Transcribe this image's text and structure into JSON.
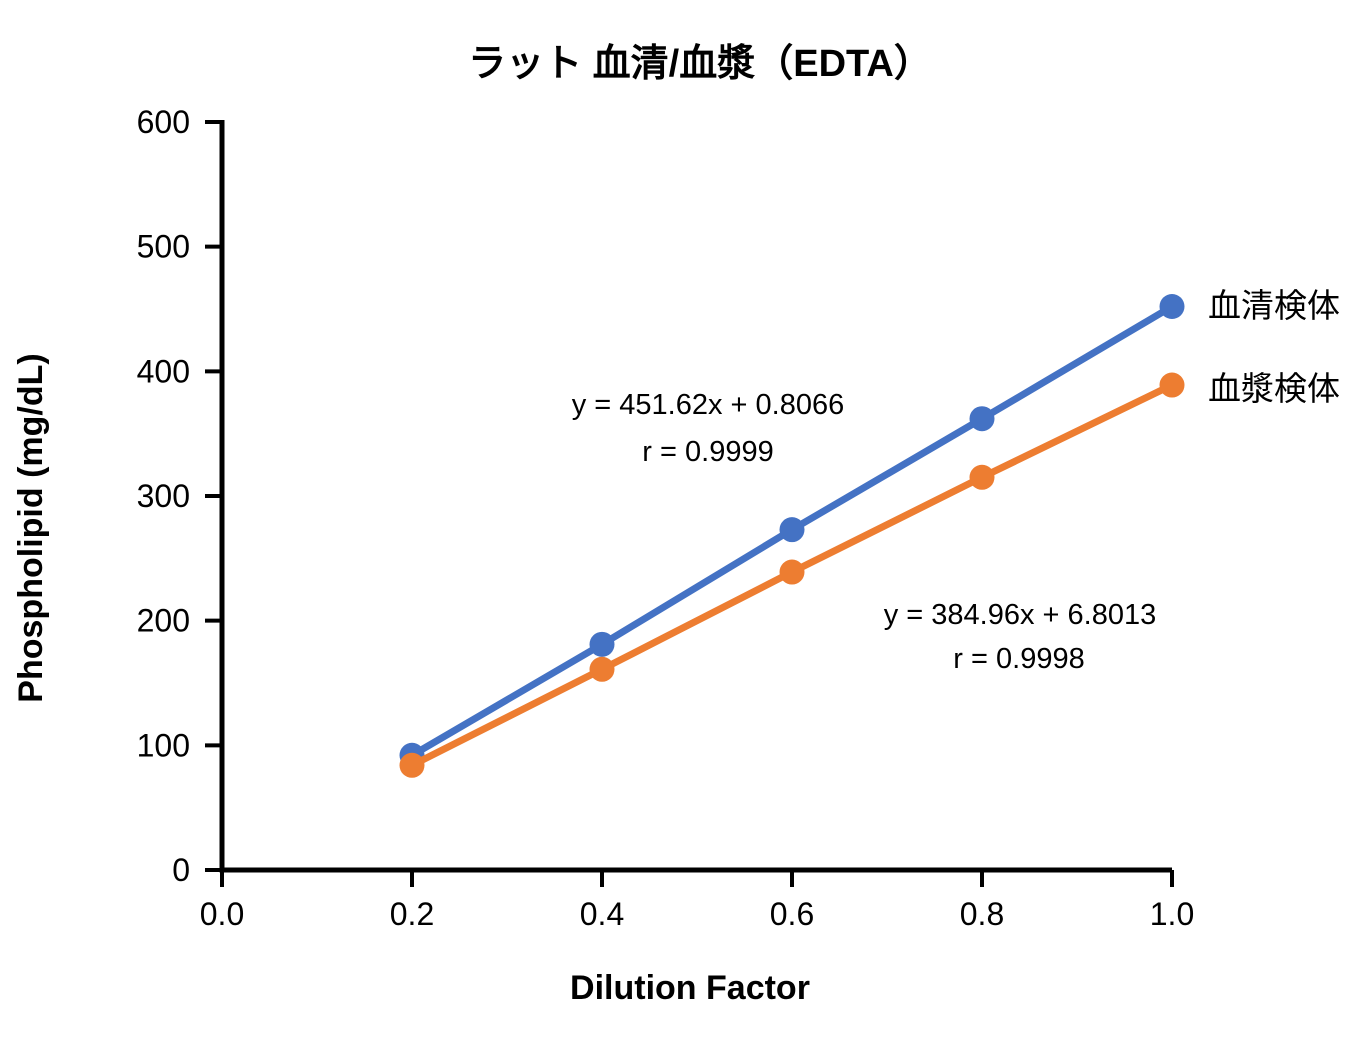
{
  "chart_data": {
    "type": "line",
    "title": "ラット 血清/血漿（EDTA）",
    "xlabel": "Dilution Factor",
    "ylabel": "Phospholipid (mg/dL)",
    "x": [
      0.2,
      0.4,
      0.6,
      0.8,
      1.0
    ],
    "xlim": [
      0.0,
      1.0
    ],
    "ylim": [
      0,
      600
    ],
    "x_ticks": [
      "0.0",
      "0.2",
      "0.4",
      "0.6",
      "0.8",
      "1.0"
    ],
    "x_tick_values": [
      0.0,
      0.2,
      0.4,
      0.6,
      0.8,
      1.0
    ],
    "y_ticks": [
      "0",
      "100",
      "200",
      "300",
      "400",
      "500",
      "600"
    ],
    "y_tick_values": [
      0,
      100,
      200,
      300,
      400,
      500,
      600
    ],
    "grid": false,
    "axis_color": "#000000",
    "text_color": "#000000",
    "background_color": "#ffffff",
    "legend_position": "right of line ends, colored text",
    "series": [
      {
        "name": "血清検体",
        "color": "#4472C4",
        "values": [
          92,
          181,
          273,
          362,
          452
        ],
        "equation": "y = 451.62x + 0.8066",
        "r_label": "r = 0.9999"
      },
      {
        "name": "血漿検体",
        "color": "#ED7D31",
        "values": [
          84,
          161,
          239,
          315,
          389
        ],
        "equation": "y = 384.96x + 6.8013",
        "r_label": "r = 0.9998"
      }
    ]
  }
}
